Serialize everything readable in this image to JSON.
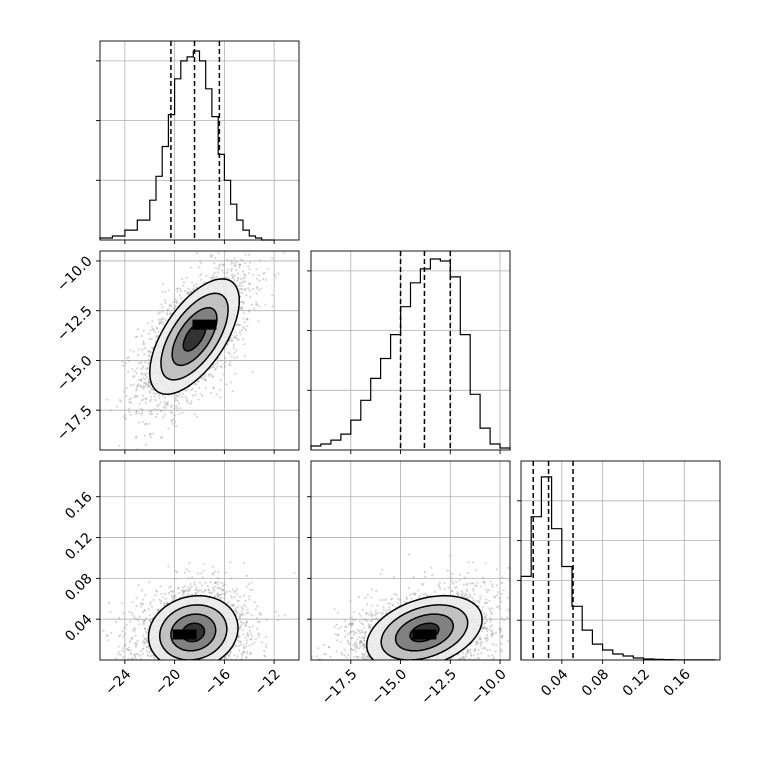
{
  "chart_data": {
    "type": "corner",
    "colors": {
      "line": "#000000",
      "grid": "#b0b0b0",
      "scatter": "#8c8c8c"
    },
    "grid": true,
    "parameters": [
      {
        "range": [
          -26,
          -10
        ],
        "ticks": [
          -24,
          -20,
          -16,
          -12
        ],
        "tick_labels": [
          "−24",
          "−20",
          "−16",
          "−12"
        ]
      },
      {
        "range": [
          -19.5,
          -9.5
        ],
        "ticks": [
          -17.5,
          -15.0,
          -12.5,
          -10.0
        ],
        "tick_labels": [
          "−17.5",
          "−15.0",
          "−12.5",
          "−10.0"
        ]
      },
      {
        "range": [
          0.0,
          0.195
        ],
        "ticks": [
          0.04,
          0.08,
          0.12,
          0.16
        ],
        "tick_labels": [
          "0.04",
          "0.08",
          "0.12",
          "0.16"
        ]
      }
    ],
    "histograms": [
      {
        "param": 0,
        "edges": [
          -26,
          -25,
          -24,
          -23,
          -22,
          -21.5,
          -21,
          -20.5,
          -20,
          -19.5,
          -19,
          -18.5,
          -18,
          -17.5,
          -17,
          -16.5,
          -16,
          -15.5,
          -15,
          -14.5,
          -14,
          -13.5,
          -13,
          -12
        ],
        "counts": [
          0.01,
          0.02,
          0.05,
          0.1,
          0.2,
          0.32,
          0.47,
          0.63,
          0.81,
          0.9,
          0.92,
          0.95,
          0.9,
          0.76,
          0.62,
          0.43,
          0.3,
          0.18,
          0.1,
          0.05,
          0.02,
          0.01,
          0
        ],
        "ymax": 1.0,
        "yticks": [
          0.3,
          0.6,
          0.9
        ],
        "quantile_lines": [
          -20.3,
          -18.4,
          -16.4
        ]
      },
      {
        "param": 1,
        "edges": [
          -19.5,
          -19,
          -18.5,
          -18,
          -17.5,
          -17,
          -16.5,
          -16,
          -15.5,
          -15,
          -14.5,
          -14,
          -13.5,
          -13,
          -12.5,
          -12,
          -11.5,
          -11,
          -10.5,
          -10,
          -9.5
        ],
        "counts": [
          0.02,
          0.03,
          0.05,
          0.08,
          0.15,
          0.25,
          0.36,
          0.46,
          0.58,
          0.72,
          0.84,
          0.91,
          0.96,
          0.95,
          0.87,
          0.58,
          0.28,
          0.11,
          0.03,
          0.01
        ],
        "ymax": 1.0,
        "yticks": [
          0.3,
          0.6,
          0.9
        ],
        "quantile_lines": [
          -15.0,
          -13.8,
          -12.5
        ]
      },
      {
        "param": 2,
        "edges": [
          0.0,
          0.01,
          0.02,
          0.03,
          0.04,
          0.05,
          0.06,
          0.07,
          0.08,
          0.09,
          0.1,
          0.11,
          0.12,
          0.13,
          0.14,
          0.15,
          0.16,
          0.17,
          0.18,
          0.19
        ],
        "counts": [
          0.42,
          0.72,
          0.92,
          0.66,
          0.47,
          0.27,
          0.15,
          0.08,
          0.05,
          0.03,
          0.02,
          0.01,
          0.005,
          0.003,
          0.002,
          0.001,
          0.001,
          0.001,
          0.001
        ],
        "ymax": 1.0,
        "yticks": [
          0.2,
          0.4,
          0.6,
          0.8
        ],
        "quantile_lines": [
          0.012,
          0.027,
          0.051
        ]
      }
    ],
    "pairs": [
      {
        "x": 0,
        "y": 1,
        "center": [
          -18.4,
          -13.8
        ],
        "sigma": [
          1.8,
          1.45
        ],
        "rho": 0.62,
        "peak": [
          -17.6,
          -13.2
        ]
      },
      {
        "x": 0,
        "y": 2,
        "center": [
          -18.5,
          0.027
        ],
        "sigma": [
          1.8,
          0.018
        ],
        "rho": 0.12,
        "peak": [
          -19.2,
          0.025
        ]
      },
      {
        "x": 1,
        "y": 2,
        "center": [
          -13.8,
          0.027
        ],
        "sigma": [
          1.45,
          0.018
        ],
        "rho": 0.35,
        "peak": [
          -13.8,
          0.025
        ]
      }
    ],
    "contour_levels_sigma": [
      0.5,
      1.0,
      1.5,
      2.0
    ],
    "contour_fills": [
      "#2a2a2a",
      "#7a7a7a",
      "#bdbdbd",
      "#ececec"
    ]
  }
}
